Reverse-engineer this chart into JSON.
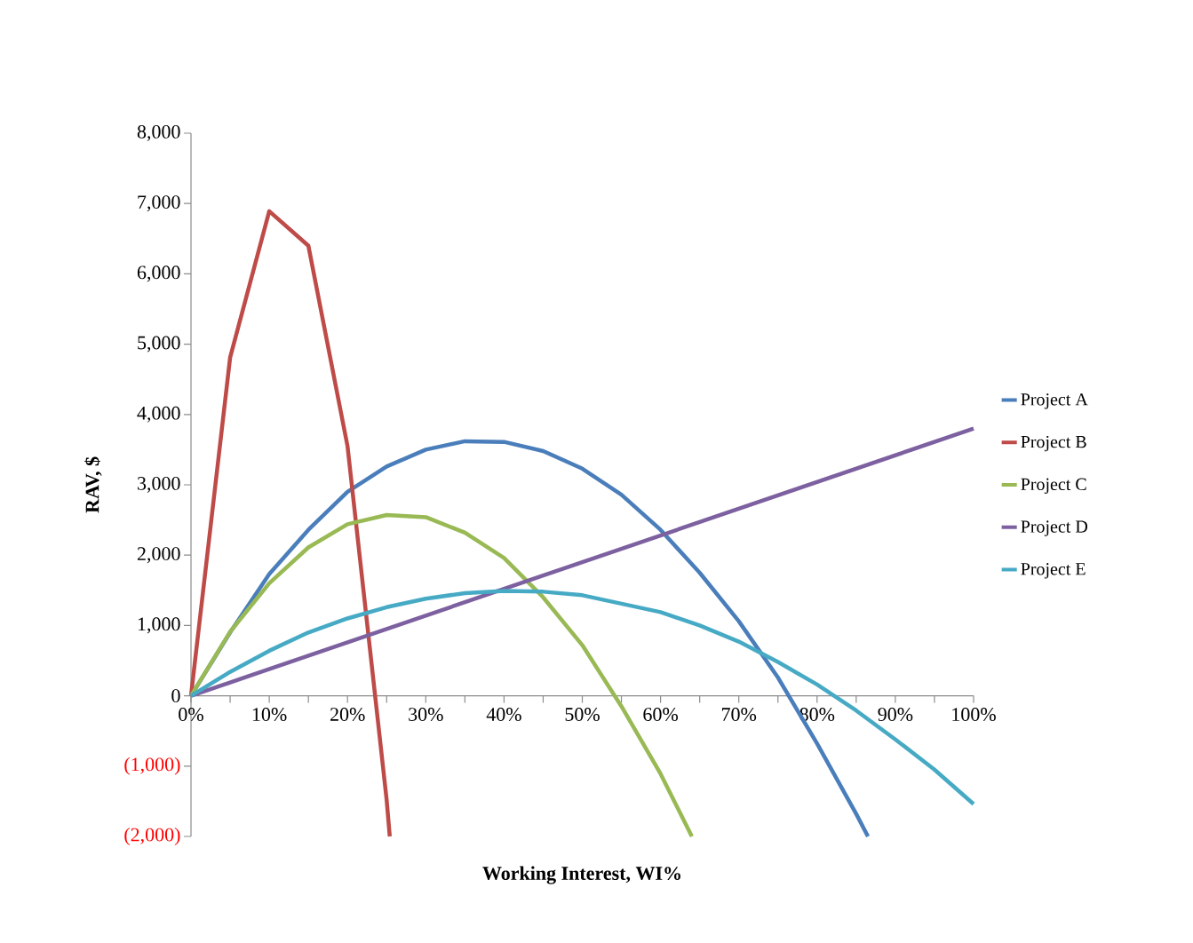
{
  "chart_data": {
    "type": "line",
    "xlabel": "Working Interest, WI%",
    "ylabel": "RAV, $",
    "xlim": [
      0,
      1
    ],
    "ylim": [
      -2000,
      8000
    ],
    "xticks": [
      {
        "value": 0,
        "label": "0%"
      },
      {
        "value": 0.05,
        "label": null
      },
      {
        "value": 0.1,
        "label": "10%"
      },
      {
        "value": 0.15,
        "label": null
      },
      {
        "value": 0.2,
        "label": "20%"
      },
      {
        "value": 0.25,
        "label": null
      },
      {
        "value": 0.3,
        "label": "30%"
      },
      {
        "value": 0.35,
        "label": null
      },
      {
        "value": 0.4,
        "label": "40%"
      },
      {
        "value": 0.45,
        "label": null
      },
      {
        "value": 0.5,
        "label": "50%"
      },
      {
        "value": 0.55,
        "label": null
      },
      {
        "value": 0.6,
        "label": "60%"
      },
      {
        "value": 0.65,
        "label": null
      },
      {
        "value": 0.7,
        "label": "70%"
      },
      {
        "value": 0.75,
        "label": null
      },
      {
        "value": 0.8,
        "label": "80%"
      },
      {
        "value": 0.85,
        "label": null
      },
      {
        "value": 0.9,
        "label": "90%"
      },
      {
        "value": 0.95,
        "label": null
      },
      {
        "value": 1,
        "label": "100%"
      }
    ],
    "yticks": [
      {
        "value": -2000,
        "label": "(2,000)"
      },
      {
        "value": -1000,
        "label": "(1,000)"
      },
      0,
      {
        "value": 1000,
        "label": "1,000"
      },
      {
        "value": 2000,
        "label": "2,000"
      },
      {
        "value": 3000,
        "label": "3,000"
      },
      {
        "value": 4000,
        "label": "4,000"
      },
      {
        "value": 5000,
        "label": "5,000"
      },
      {
        "value": 6000,
        "label": "6,000"
      },
      {
        "value": 7000,
        "label": "7,000"
      },
      {
        "value": 8000,
        "label": "8,000"
      }
    ],
    "legend": "right",
    "grid": false,
    "marker": "none",
    "line_style": "solid",
    "series": [
      {
        "name": "Project A",
        "color": "#4a7ebb",
        "x": [
          0,
          0.05,
          0.1,
          0.15,
          0.2,
          0.25,
          0.3,
          0.35,
          0.4,
          0.45,
          0.5,
          0.55,
          0.6,
          0.65,
          0.7,
          0.75,
          0.8,
          0.85,
          0.865
        ],
        "values": [
          0,
          900,
          1730,
          2360,
          2900,
          3260,
          3500,
          3620,
          3610,
          3480,
          3230,
          2860,
          2360,
          1750,
          1060,
          260,
          -680,
          -1680,
          -2000
        ]
      },
      {
        "name": "Project B",
        "color": "#be4b48",
        "x": [
          0,
          0.05,
          0.1,
          0.15,
          0.2,
          0.25,
          0.254
        ],
        "values": [
          0,
          4810,
          6890,
          6400,
          3550,
          -1480,
          -2000
        ]
      },
      {
        "name": "Project C",
        "color": "#98b954",
        "x": [
          0,
          0.05,
          0.1,
          0.15,
          0.2,
          0.25,
          0.3,
          0.35,
          0.4,
          0.45,
          0.5,
          0.55,
          0.6,
          0.64
        ],
        "values": [
          0,
          910,
          1600,
          2110,
          2440,
          2570,
          2540,
          2320,
          1960,
          1400,
          720,
          -150,
          -1110,
          -2000
        ]
      },
      {
        "name": "Project D",
        "color": "#7d60a0",
        "x": [
          0,
          1
        ],
        "values": [
          0,
          3800
        ]
      },
      {
        "name": "Project E",
        "color": "#46aac5",
        "x": [
          0,
          0.05,
          0.1,
          0.15,
          0.2,
          0.25,
          0.3,
          0.35,
          0.4,
          0.45,
          0.5,
          0.55,
          0.6,
          0.65,
          0.7,
          0.75,
          0.8,
          0.85,
          0.9,
          0.95,
          1
        ],
        "values": [
          0,
          340,
          640,
          900,
          1100,
          1260,
          1380,
          1460,
          1490,
          1480,
          1430,
          1310,
          1190,
          1000,
          770,
          480,
          160,
          -210,
          -620,
          -1050,
          -1540
        ]
      }
    ]
  }
}
